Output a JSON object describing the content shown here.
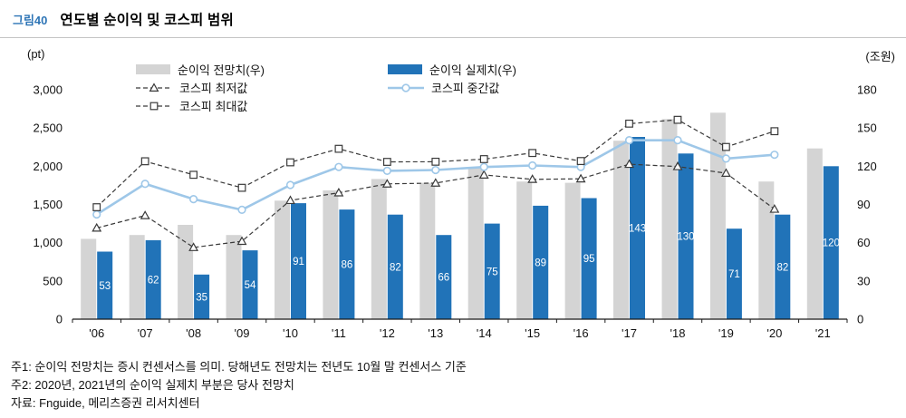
{
  "header": {
    "figure_label": "그림40",
    "title": "연도별 순이익 및 코스피 범위"
  },
  "legend": {
    "forecast": "순이익 전망치(우)",
    "actual": "순이익 실제치(우)",
    "kospi_min": "코스피 최저값",
    "kospi_mid": "코스피 중간값",
    "kospi_max": "코스피 최대값"
  },
  "colors": {
    "forecast_bar": "#d4d4d4",
    "actual_bar": "#2173b8",
    "kospi_mid_line": "#9ec7e8",
    "kospi_minmax_line": "#3a3a3a",
    "figure_label_blue": "#2e75b6"
  },
  "chart_data": {
    "type": "bar+line combo",
    "title": "연도별 순이익 및 코스피 범위",
    "categories": [
      "'06",
      "'07",
      "'08",
      "'09",
      "'10",
      "'11",
      "'12",
      "'13",
      "'14",
      "'15",
      "'16",
      "'17",
      "'18",
      "'19",
      "'20",
      "'21"
    ],
    "left_axis": {
      "unit": "(pt)",
      "min": 0,
      "max": 3000,
      "step": 500,
      "ticks": [
        "0",
        "500",
        "1,000",
        "1,500",
        "2,000",
        "2,500",
        "3,000"
      ]
    },
    "right_axis": {
      "unit": "(조원)",
      "min": 0,
      "max": 180,
      "step": 30,
      "ticks": [
        "0",
        "30",
        "60",
        "90",
        "120",
        "150",
        "180"
      ]
    },
    "series": [
      {
        "id": "forecast",
        "name": "순이익 전망치(우)",
        "type": "bar",
        "axis": "right",
        "color": "#d4d4d4",
        "values": [
          63,
          66,
          74,
          66,
          93,
          101,
          110,
          107,
          119,
          108,
          107,
          140,
          157,
          162,
          108,
          134
        ]
      },
      {
        "id": "actual",
        "name": "순이익 실제치(우)",
        "type": "bar",
        "axis": "right",
        "color": "#2173b8",
        "show_labels": true,
        "values": [
          53,
          62,
          35,
          54,
          91,
          86,
          82,
          66,
          75,
          89,
          95,
          143,
          130,
          71,
          82,
          120
        ]
      },
      {
        "id": "kospi-min",
        "name": "코스피 최저값",
        "type": "line",
        "axis": "left",
        "color": "#3a3a3a",
        "dash": "5 3",
        "width": 1.2,
        "marker": "triangle",
        "values": [
          1192,
          1355,
          938,
          1019,
          1553,
          1653,
          1769,
          1780,
          1886,
          1829,
          1835,
          2026,
          1996,
          1909,
          1439,
          null
        ]
      },
      {
        "id": "kospi-mid",
        "name": "코스피 중간값",
        "type": "line",
        "axis": "left",
        "color": "#9ec7e8",
        "width": 2.6,
        "marker": "circle",
        "values": [
          1370,
          1770,
          1570,
          1430,
          1755,
          1990,
          1940,
          1950,
          1990,
          2010,
          1990,
          2340,
          2340,
          2100,
          2150,
          null
        ]
      },
      {
        "id": "kospi-max",
        "name": "코스피 최대값",
        "type": "line",
        "axis": "left",
        "color": "#3a3a3a",
        "dash": "5 3",
        "width": 1.2,
        "marker": "square",
        "values": [
          1464,
          2065,
          1888,
          1718,
          2051,
          2228,
          2057,
          2059,
          2093,
          2173,
          2068,
          2557,
          2607,
          2252,
          2458,
          null
        ]
      }
    ],
    "legend_position": "top-inside",
    "grid": false
  },
  "footer": {
    "note1": "주1: 순이익 전망치는 증시 컨센서스를 의미. 당해년도 전망치는 전년도 10월 말 컨센서스 기준",
    "note2": "주2: 2020년, 2021년의 순이익 실제치 부분은 당사 전망치",
    "source": "자료: Fnguide, 메리츠증권 리서치센터"
  }
}
